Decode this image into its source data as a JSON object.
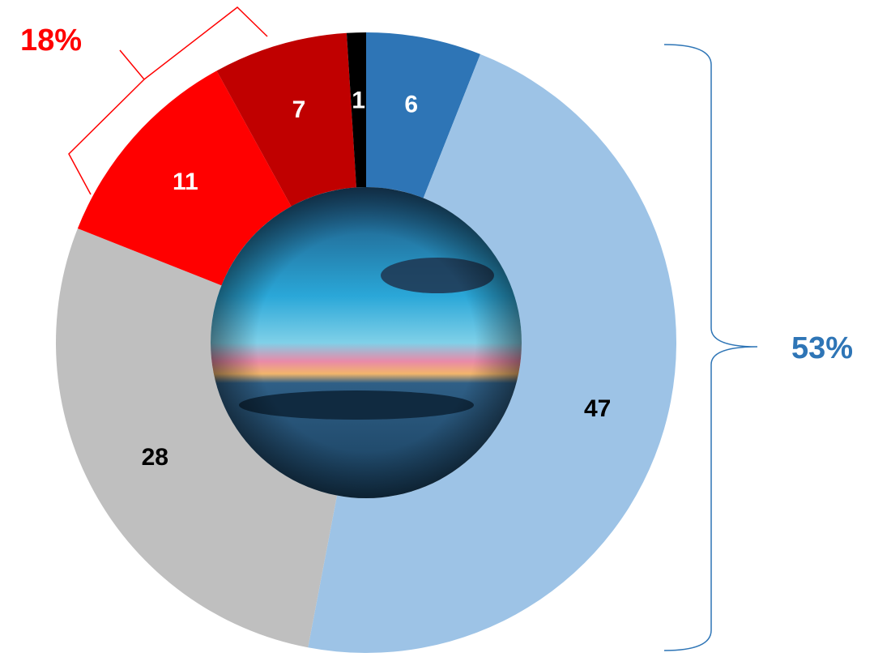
{
  "chart_data": {
    "type": "donut",
    "values": [
      6,
      47,
      28,
      11,
      7,
      1
    ],
    "colors": [
      "#2e75b6",
      "#9dc3e6",
      "#bfbfbf",
      "#ff0000",
      "#c00000",
      "#000000"
    ],
    "label_colors": [
      "#ffffff",
      "#000000",
      "#000000",
      "#ffffff",
      "#ffffff",
      "#ffffff"
    ],
    "annotations": [
      {
        "text": "18%",
        "color": "#ff0000"
      },
      {
        "text": "53%",
        "color": "#2e75b6"
      }
    ]
  }
}
